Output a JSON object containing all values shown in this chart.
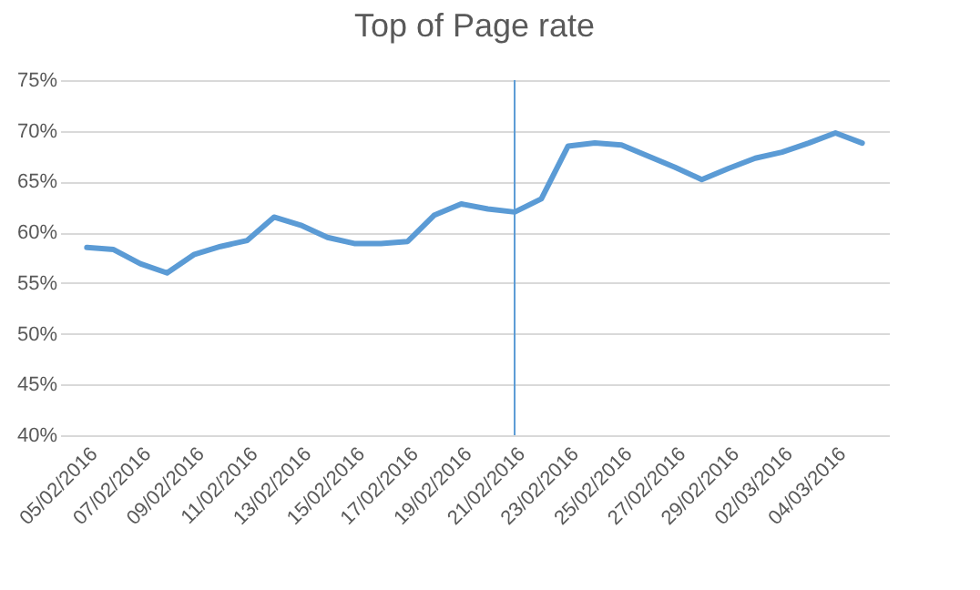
{
  "chart_data": {
    "type": "line",
    "title": "Top of Page rate",
    "categories": [
      "05/02/2016",
      null,
      "07/02/2016",
      null,
      "09/02/2016",
      null,
      "11/02/2016",
      null,
      "13/02/2016",
      null,
      "15/02/2016",
      null,
      "17/02/2016",
      null,
      "19/02/2016",
      null,
      "21/02/2016",
      null,
      "23/02/2016",
      null,
      "25/02/2016",
      null,
      "27/02/2016",
      null,
      "29/02/2016",
      null,
      "02/03/2016",
      null,
      "04/03/2016",
      null
    ],
    "series": [
      {
        "color": "#5b9bd5",
        "values": [
          58.5,
          58.3,
          56.9,
          56.0,
          57.8,
          58.6,
          59.2,
          61.5,
          60.7,
          59.5,
          58.9,
          58.9,
          59.1,
          61.7,
          62.8,
          62.3,
          62.0,
          63.3,
          68.5,
          68.8,
          68.6,
          67.5,
          66.4,
          65.2,
          66.3,
          67.3,
          67.9,
          68.8,
          69.8,
          68.8
        ]
      }
    ],
    "ylim": [
      40,
      75
    ],
    "yticks": [
      {
        "value": 40,
        "label": "40%"
      },
      {
        "value": 45,
        "label": "45%"
      },
      {
        "value": 50,
        "label": "50%"
      },
      {
        "value": 55,
        "label": "55%"
      },
      {
        "value": 60,
        "label": "60%"
      },
      {
        "value": 65,
        "label": "65%"
      },
      {
        "value": 70,
        "label": "70%"
      },
      {
        "value": 75,
        "label": "75%"
      }
    ],
    "grid": "y",
    "ref_lines": [
      {
        "axis": "x",
        "value": "21/02/2016",
        "color": "#5b9bd5"
      }
    ]
  }
}
